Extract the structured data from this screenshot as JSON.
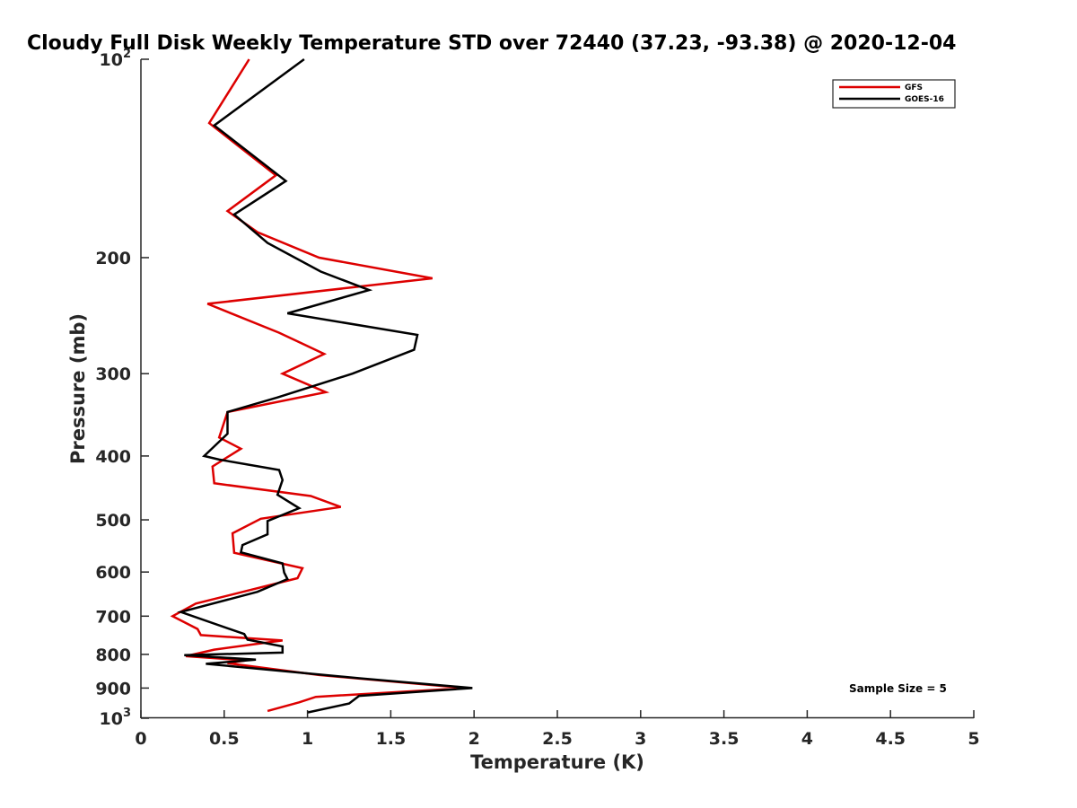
{
  "chart_data": {
    "type": "line",
    "title": "Cloudy Full Disk Weekly Temperature STD over 72440 (37.23, -93.38) @ 2020-12-04",
    "xlabel": "Temperature (K)",
    "ylabel": "Pressure (mb)",
    "xlim": [
      0,
      5
    ],
    "ylim": [
      1000,
      100
    ],
    "y_scale": "log",
    "y_reversed": true,
    "grid": false,
    "legend_position": "top-right",
    "x_ticks": [
      0,
      0.5,
      1,
      1.5,
      2,
      2.5,
      3,
      3.5,
      4,
      4.5,
      5
    ],
    "x_tick_labels": [
      "0",
      "0.5",
      "1",
      "1.5",
      "2",
      "2.5",
      "3",
      "3.5",
      "4",
      "4.5",
      "5"
    ],
    "y_ticks": [
      {
        "value": 100,
        "label": "10",
        "sup": "2"
      },
      {
        "value": 200,
        "label": "200",
        "sup": ""
      },
      {
        "value": 300,
        "label": "300",
        "sup": ""
      },
      {
        "value": 400,
        "label": "400",
        "sup": ""
      },
      {
        "value": 500,
        "label": "500",
        "sup": ""
      },
      {
        "value": 600,
        "label": "600",
        "sup": ""
      },
      {
        "value": 700,
        "label": "700",
        "sup": ""
      },
      {
        "value": 800,
        "label": "800",
        "sup": ""
      },
      {
        "value": 900,
        "label": "900",
        "sup": ""
      },
      {
        "value": 1000,
        "label": "10",
        "sup": "3"
      }
    ],
    "annotation": "Sample Size = 5",
    "series": [
      {
        "name": "GFS",
        "color": "#dd0000",
        "points": [
          [
            0.65,
            100
          ],
          [
            0.41,
            125
          ],
          [
            0.81,
            150
          ],
          [
            0.52,
            170
          ],
          [
            0.7,
            183
          ],
          [
            1.07,
            200
          ],
          [
            1.75,
            215
          ],
          [
            0.4,
            235
          ],
          [
            0.83,
            260
          ],
          [
            1.1,
            280
          ],
          [
            0.85,
            300
          ],
          [
            1.11,
            320
          ],
          [
            0.52,
            343
          ],
          [
            0.47,
            375
          ],
          [
            0.6,
            390
          ],
          [
            0.43,
            415
          ],
          [
            0.44,
            440
          ],
          [
            1.02,
            460
          ],
          [
            1.2,
            478
          ],
          [
            0.72,
            498
          ],
          [
            0.55,
            524
          ],
          [
            0.56,
            561
          ],
          [
            0.97,
            592
          ],
          [
            0.94,
            613
          ],
          [
            0.33,
            670
          ],
          [
            0.19,
            700
          ],
          [
            0.34,
            732
          ],
          [
            0.36,
            748
          ],
          [
            0.85,
            762
          ],
          [
            0.44,
            787
          ],
          [
            0.27,
            805
          ],
          [
            0.63,
            817
          ],
          [
            0.52,
            825
          ],
          [
            1.07,
            860
          ],
          [
            1.95,
            900
          ],
          [
            1.05,
            928
          ],
          [
            0.95,
            946
          ],
          [
            0.76,
            975
          ]
        ]
      },
      {
        "name": "GOES-16",
        "color": "#000000",
        "points": [
          [
            0.98,
            100
          ],
          [
            0.44,
            126
          ],
          [
            0.87,
            153
          ],
          [
            0.56,
            172
          ],
          [
            0.76,
            190
          ],
          [
            1.08,
            210
          ],
          [
            1.37,
            224
          ],
          [
            0.88,
            243
          ],
          [
            1.66,
            262
          ],
          [
            1.64,
            276
          ],
          [
            1.27,
            300
          ],
          [
            0.82,
            326
          ],
          [
            0.52,
            343
          ],
          [
            0.52,
            370
          ],
          [
            0.38,
            400
          ],
          [
            0.47,
            405
          ],
          [
            0.83,
            420
          ],
          [
            0.85,
            435
          ],
          [
            0.82,
            458
          ],
          [
            0.95,
            480
          ],
          [
            0.76,
            502
          ],
          [
            0.76,
            526
          ],
          [
            0.61,
            546
          ],
          [
            0.6,
            560
          ],
          [
            0.85,
            582
          ],
          [
            0.86,
            601
          ],
          [
            0.88,
            615
          ],
          [
            0.7,
            643
          ],
          [
            0.24,
            690
          ],
          [
            0.62,
            745
          ],
          [
            0.64,
            760
          ],
          [
            0.85,
            778
          ],
          [
            0.85,
            795
          ],
          [
            0.26,
            802
          ],
          [
            0.69,
            815
          ],
          [
            0.39,
            827
          ],
          [
            1.32,
            870
          ],
          [
            1.99,
            900
          ],
          [
            1.31,
            925
          ],
          [
            1.25,
            950
          ],
          [
            1.0,
            980
          ]
        ]
      }
    ]
  }
}
